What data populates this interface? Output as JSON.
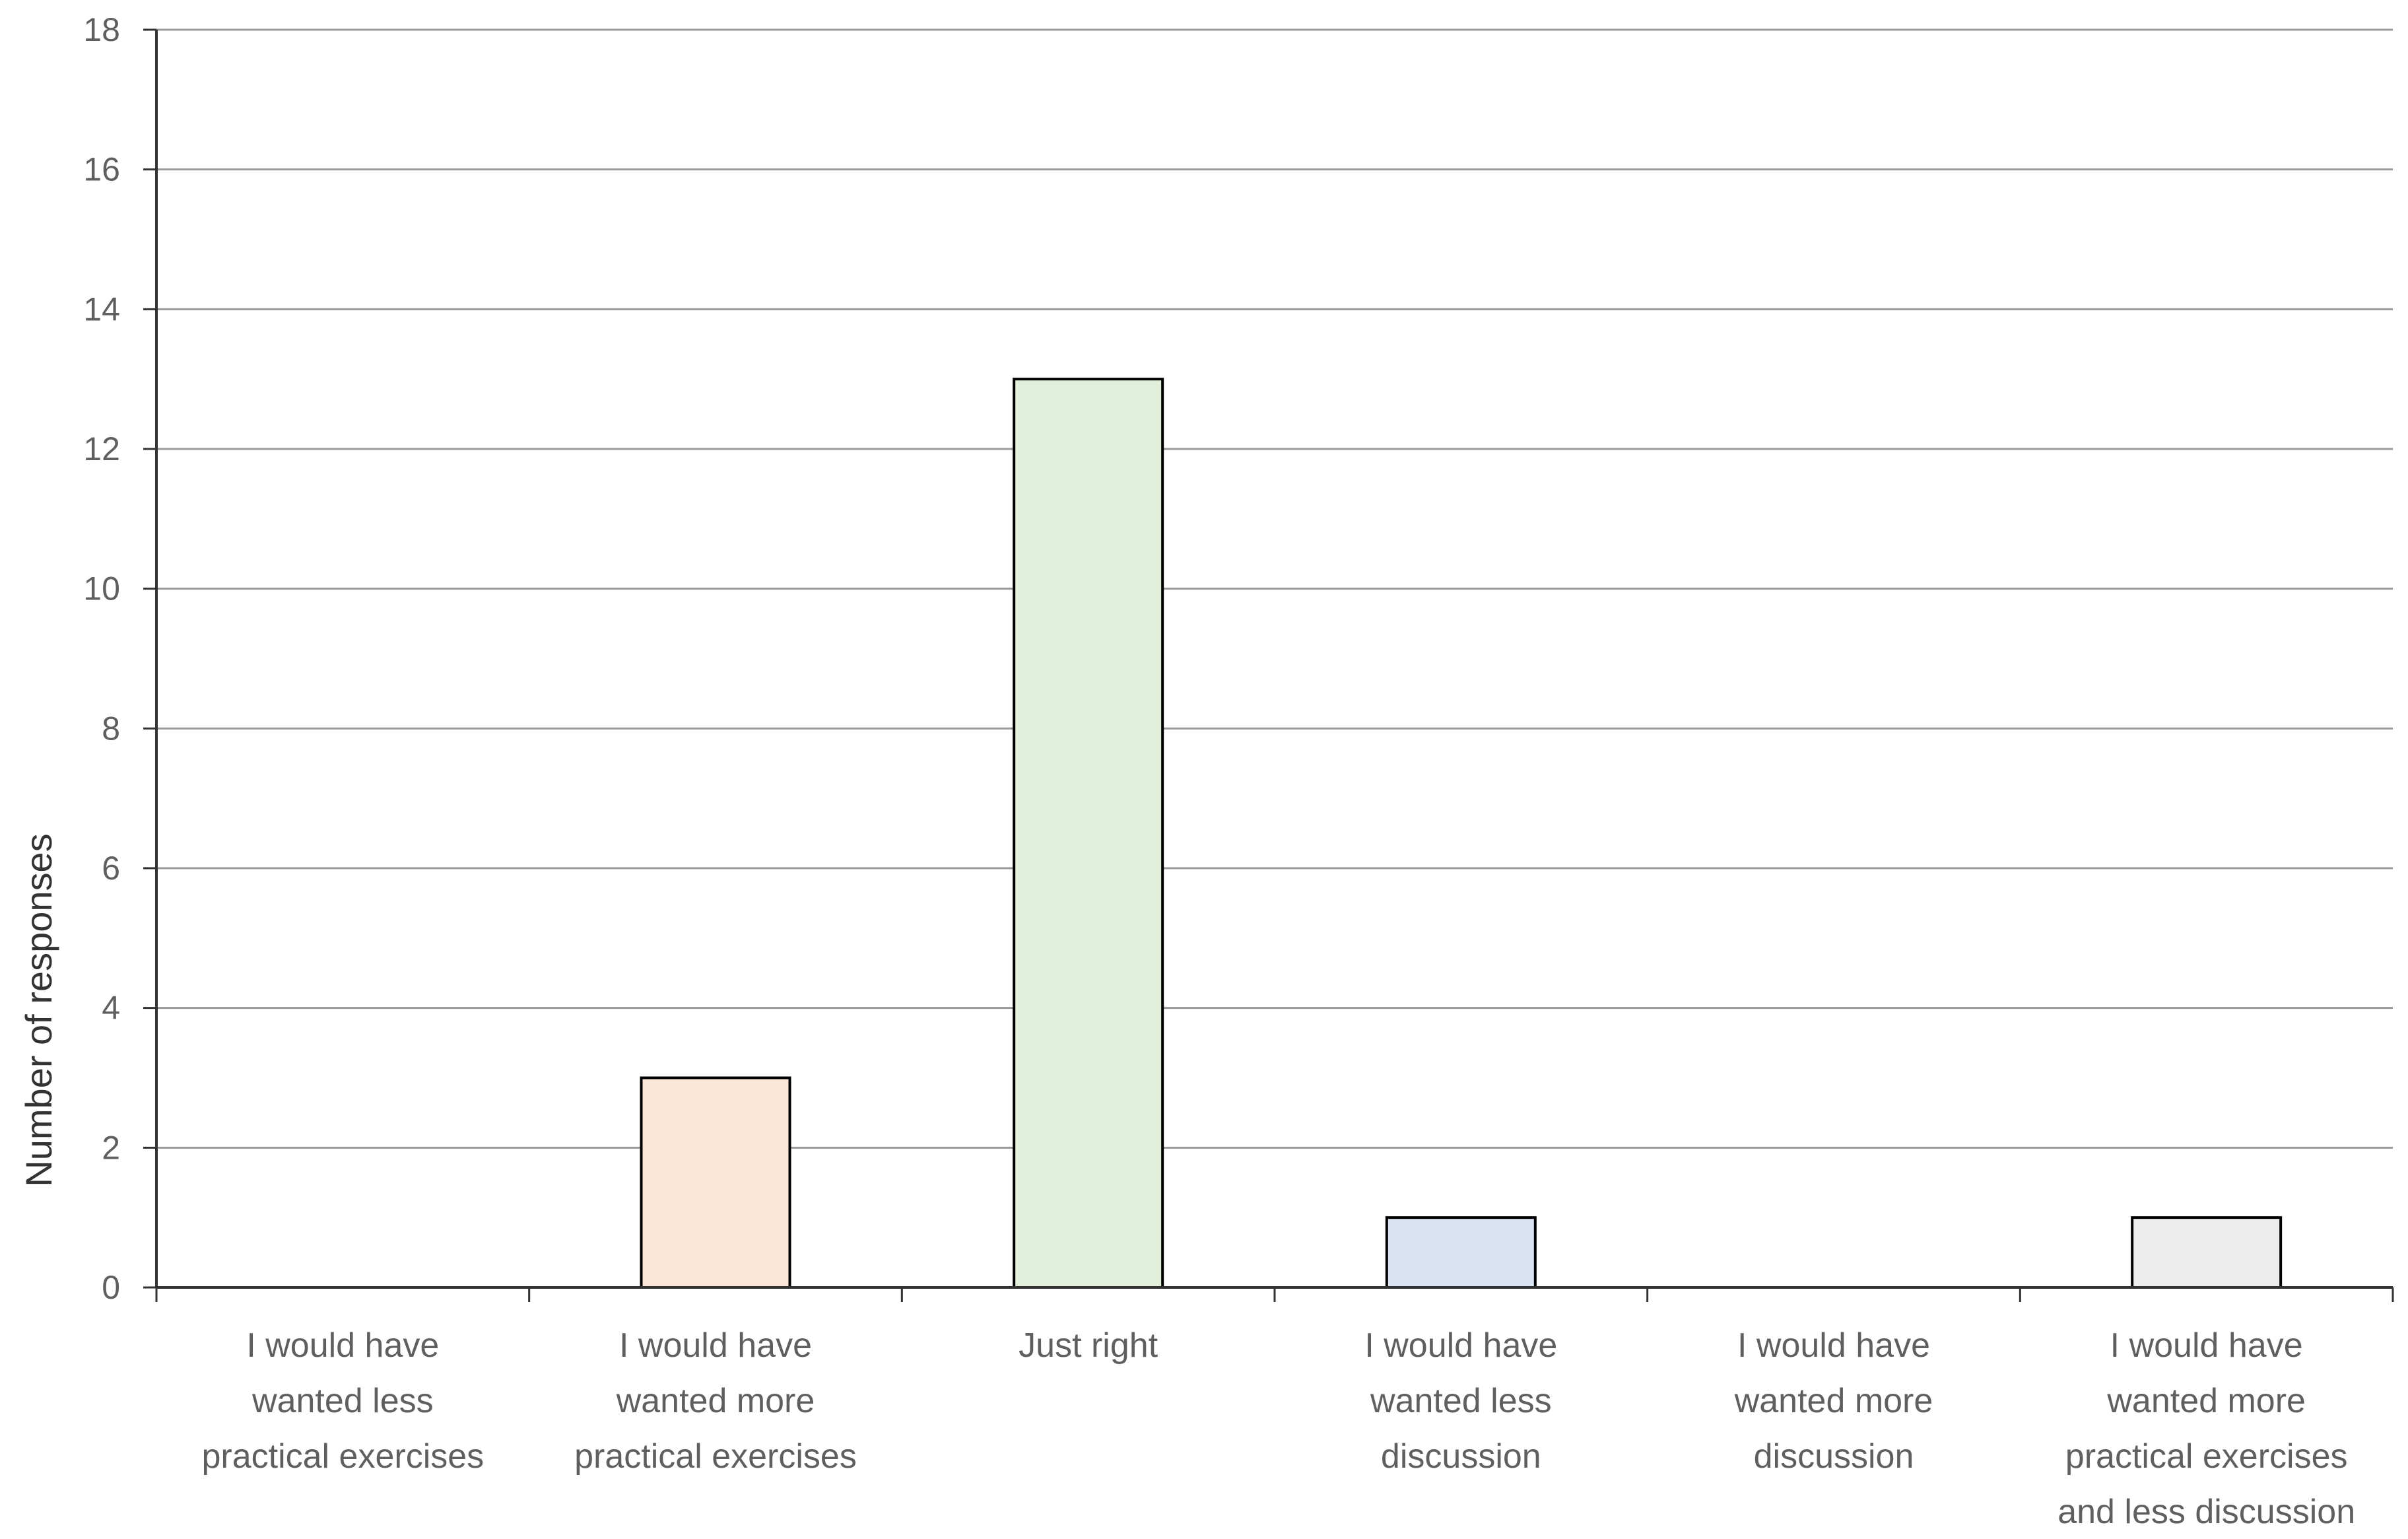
{
  "chart_data": {
    "type": "bar",
    "title": "",
    "xlabel": "",
    "ylabel": "Number of responses",
    "ylim": [
      0,
      18
    ],
    "yticks": [
      0,
      2,
      4,
      6,
      8,
      10,
      12,
      14,
      16,
      18
    ],
    "grid": true,
    "legend": "none",
    "categories": [
      [
        "I would have",
        "wanted less",
        "practical exercises"
      ],
      [
        "I would have",
        "wanted more",
        "practical exercises"
      ],
      [
        "Just right"
      ],
      [
        "I would have",
        "wanted less",
        "discussion"
      ],
      [
        "I would have",
        "wanted more",
        "discussion"
      ],
      [
        "I would have",
        "wanted more",
        "practical exercises",
        "and less discussion"
      ]
    ],
    "values": [
      0,
      3,
      13,
      1,
      0,
      1
    ],
    "bar_colors": [
      "#dce6f2",
      "#fbe5d6",
      "#e2efda",
      "#dae3f3",
      "#dce6f2",
      "#ededed"
    ],
    "bar_stroke": "#000000",
    "grid_color": "#9a9a9a",
    "axis_color": "#333333"
  }
}
